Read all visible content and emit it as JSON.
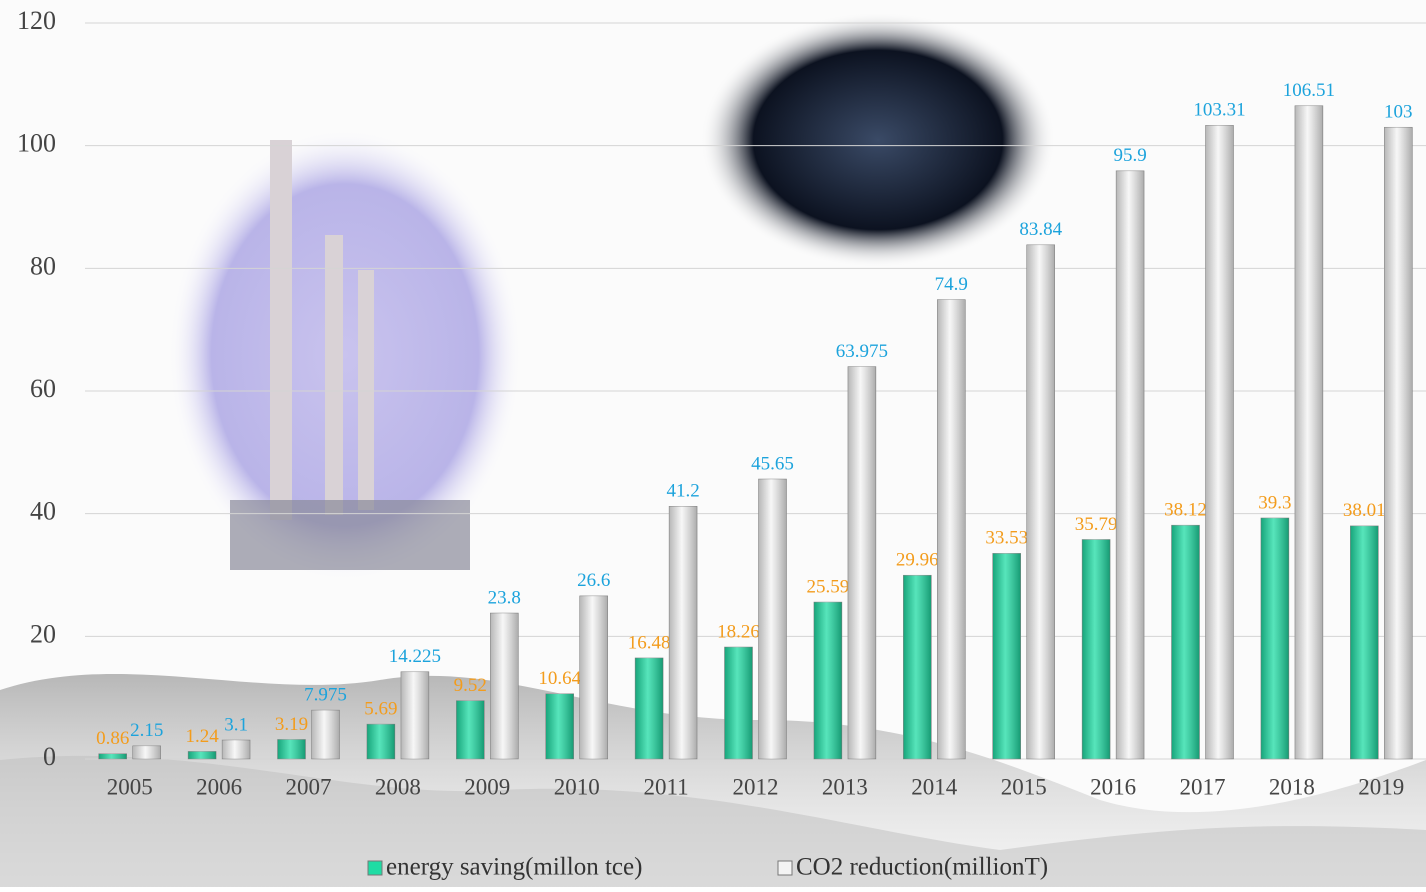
{
  "chart_data": {
    "type": "bar",
    "categories": [
      "2005",
      "2006",
      "2007",
      "2008",
      "2009",
      "2010",
      "2011",
      "2012",
      "2013",
      "2014",
      "2015",
      "2016",
      "2017",
      "2018",
      "2019"
    ],
    "series": [
      {
        "name": "energy saving(millon tce)",
        "color": "#1fdca4",
        "label_color": "#f39c1c",
        "values": [
          0.86,
          1.24,
          3.19,
          5.69,
          9.52,
          10.64,
          16.48,
          18.26,
          25.59,
          29.96,
          33.53,
          35.79,
          38.12,
          39.3,
          38.01
        ]
      },
      {
        "name": "CO2 reduction(millionT)",
        "color": "#f4f4f4",
        "label_color": "#1ca3dc",
        "values": [
          2.15,
          3.1,
          7.975,
          14.225,
          23.8,
          26.6,
          41.2,
          45.65,
          63.975,
          74.9,
          83.84,
          95.9,
          103.31,
          106.51,
          103
        ]
      }
    ],
    "ylim": [
      0,
      120
    ],
    "yticks": [
      0,
      20,
      40,
      60,
      80,
      100,
      120
    ],
    "grid": true,
    "legend": "bottom"
  }
}
